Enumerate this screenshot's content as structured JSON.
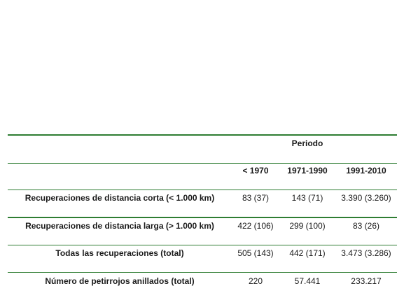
{
  "table": {
    "group_header": "Periodo",
    "column_headers": [
      "< 1970",
      "1971-1990",
      "1991-2010"
    ],
    "rows": [
      {
        "label": "Recuperaciones de distancia corta (< 1.000 km)",
        "values": [
          "83 (37)",
          "143 (71)",
          "3.390 (3.260)"
        ]
      },
      {
        "label": "Recuperaciones de distancia larga (> 1.000 km)",
        "values": [
          "422 (106)",
          "299 (100)",
          "83 (26)"
        ]
      },
      {
        "label": "Todas las recuperaciones (total)",
        "values": [
          "505 (143)",
          "442 (171)",
          "3.473 (3.286)"
        ]
      },
      {
        "label": "Número de petirrojos anillados (total)",
        "values": [
          "220",
          "57.441",
          "233.217"
        ]
      }
    ]
  },
  "colors": {
    "rule": "#2e7d32",
    "text": "#1a1a1a"
  }
}
